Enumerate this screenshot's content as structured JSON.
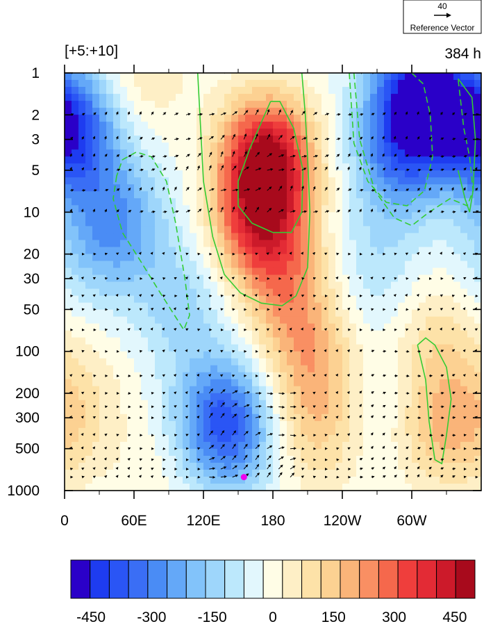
{
  "chart_data": {
    "type": "heatmap",
    "title_left": "[+5:+10]",
    "title_right": "384 h",
    "x_tick_labels": [
      "0",
      "60E",
      "120E",
      "180",
      "120W",
      "60W"
    ],
    "x_tick_lon": [
      0,
      60,
      120,
      180,
      240,
      300
    ],
    "xlim": [
      0,
      360
    ],
    "y_tick_labels": [
      "1",
      "2",
      "3",
      "5",
      "10",
      "20",
      "30",
      "50",
      "100",
      "200",
      "300",
      "500",
      "1000"
    ],
    "y_tick_values": [
      1,
      2,
      3,
      5,
      10,
      20,
      30,
      50,
      100,
      200,
      300,
      500,
      1000
    ],
    "ylim": [
      1,
      1000
    ],
    "y_scale": "log",
    "y_inverted": true,
    "reference_vector": {
      "value": "40",
      "label": "Reference Vector"
    },
    "colorbar": {
      "levels": [
        -500,
        -450,
        -400,
        -350,
        -300,
        -250,
        -200,
        -150,
        -100,
        -50,
        0,
        50,
        100,
        150,
        200,
        250,
        300,
        350,
        400,
        450,
        500
      ],
      "tick_labels": [
        "-450",
        "-300",
        "-150",
        "0",
        "150",
        "300",
        "450"
      ],
      "tick_values": [
        -450,
        -300,
        -150,
        0,
        150,
        300,
        450
      ],
      "colors": [
        "#2a00c8",
        "#1e3cf0",
        "#2a55f5",
        "#3a6ef5",
        "#4a8cf5",
        "#64a8f8",
        "#82c3fa",
        "#9ed6fb",
        "#bce8fc",
        "#e2f7fd",
        "#fffde6",
        "#feefc6",
        "#fde2a8",
        "#fcd192",
        "#fab479",
        "#f98f63",
        "#f5684c",
        "#ef3e3c",
        "#e32b35",
        "#cc1a2a",
        "#a80a1c"
      ]
    },
    "field_anomalies": [
      {
        "lon": 175,
        "p": 4,
        "value": 480
      },
      {
        "lon": 170,
        "p": 12,
        "value": 380
      },
      {
        "lon": 195,
        "p": 40,
        "value": 200
      },
      {
        "lon": 215,
        "p": 130,
        "value": 180
      },
      {
        "lon": 220,
        "p": 400,
        "value": 130
      },
      {
        "lon": 325,
        "p": 350,
        "value": 180
      },
      {
        "lon": 322,
        "p": 80,
        "value": 120
      },
      {
        "lon": 70,
        "p": 1,
        "value": 90
      },
      {
        "lon": 5,
        "p": 350,
        "value": 80
      },
      {
        "lon": 20,
        "p": 180,
        "value": 50
      },
      {
        "lon": 80,
        "p": 700,
        "value": 40
      },
      {
        "lon": 150,
        "p": 750,
        "value": 30
      },
      {
        "lon": 10,
        "p": 3,
        "value": -300
      },
      {
        "lon": 48,
        "p": 12,
        "value": -220
      },
      {
        "lon": 100,
        "p": 45,
        "value": -120
      },
      {
        "lon": 133,
        "p": 280,
        "value": -240
      },
      {
        "lon": 145,
        "p": 450,
        "value": -200
      },
      {
        "lon": 305,
        "p": 1.3,
        "value": -420
      },
      {
        "lon": 290,
        "p": 4,
        "value": -280
      },
      {
        "lon": 345,
        "p": 2,
        "value": -240
      },
      {
        "lon": 268,
        "p": 25,
        "value": -90
      },
      {
        "lon": 272,
        "p": 220,
        "value": -50
      },
      {
        "lon": 15,
        "p": 20,
        "value": -80
      }
    ],
    "contour_lines": [
      {
        "style": "solid",
        "lonp": [
          [
            115,
            1
          ],
          [
            120,
            6
          ],
          [
            128,
            15
          ],
          [
            138,
            28
          ],
          [
            152,
            38
          ],
          [
            170,
            45
          ],
          [
            188,
            47
          ],
          [
            200,
            40
          ],
          [
            210,
            25
          ],
          [
            212,
            10
          ],
          [
            210,
            4
          ],
          [
            208,
            2
          ],
          [
            205,
            1
          ]
        ]
      },
      {
        "style": "solid",
        "lonp": [
          [
            178,
            1.6
          ],
          [
            160,
            3.5
          ],
          [
            150,
            6
          ],
          [
            150,
            9
          ],
          [
            162,
            12
          ],
          [
            180,
            14
          ],
          [
            196,
            14
          ],
          [
            205,
            10
          ],
          [
            206,
            5
          ],
          [
            198,
            2.5
          ],
          [
            186,
            1.6
          ],
          [
            178,
            1.6
          ]
        ]
      },
      {
        "style": "solid",
        "lonp": [
          [
            305,
            90
          ],
          [
            312,
            160
          ],
          [
            315,
            320
          ],
          [
            320,
            600
          ],
          [
            326,
            640
          ],
          [
            330,
            400
          ],
          [
            334,
            220
          ],
          [
            330,
            130
          ],
          [
            320,
            90
          ],
          [
            312,
            80
          ],
          [
            305,
            90
          ]
        ]
      },
      {
        "style": "solid",
        "lonp": [
          [
            340,
            1.1
          ],
          [
            352,
            1.5
          ],
          [
            355,
            3
          ],
          [
            353,
            7
          ],
          [
            350,
            10
          ],
          [
            346,
            8
          ],
          [
            340,
            5
          ]
        ]
      },
      {
        "style": "dashed",
        "lonp": [
          [
            45,
            5.5
          ],
          [
            42,
            8
          ],
          [
            50,
            14
          ],
          [
            65,
            22
          ],
          [
            80,
            35
          ],
          [
            95,
            55
          ],
          [
            103,
            70
          ],
          [
            108,
            55
          ],
          [
            104,
            30
          ],
          [
            96,
            12
          ],
          [
            88,
            6
          ],
          [
            75,
            4
          ],
          [
            62,
            3.7
          ],
          [
            50,
            4.2
          ],
          [
            45,
            5.5
          ]
        ]
      },
      {
        "style": "dashed",
        "lonp": [
          [
            250,
            1
          ],
          [
            255,
            3
          ],
          [
            268,
            7
          ],
          [
            285,
            11
          ],
          [
            300,
            12.5
          ],
          [
            315,
            10
          ],
          [
            333,
            8
          ],
          [
            348,
            9
          ],
          [
            353,
            7
          ],
          [
            350,
            4
          ],
          [
            345,
            2.5
          ],
          [
            340,
            1.1
          ]
        ]
      },
      {
        "style": "dashed",
        "lonp": [
          [
            246,
            1
          ],
          [
            250,
            3.2
          ],
          [
            262,
            6
          ],
          [
            278,
            8.5
          ],
          [
            296,
            9
          ],
          [
            311,
            7
          ],
          [
            318,
            4
          ],
          [
            316,
            2
          ],
          [
            310,
            1.2
          ],
          [
            300,
            1
          ]
        ]
      }
    ],
    "marker": {
      "lon": 155,
      "p": 800,
      "color": "#ee00ee"
    }
  }
}
